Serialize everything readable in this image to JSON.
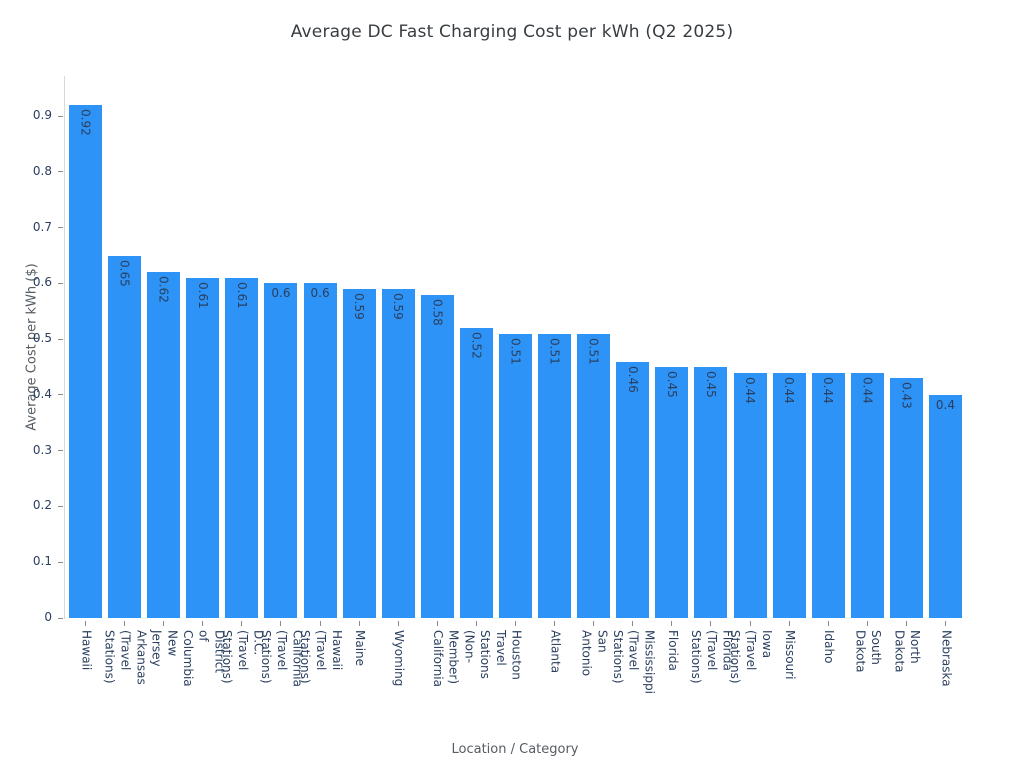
{
  "chart_data": {
    "type": "bar",
    "title": "Average DC Fast Charging Cost per kWh (Q2 2025)",
    "xlabel": "Location / Category",
    "ylabel": "Average Cost per kWh ($)",
    "categories": [
      "Hawaii",
      "Arkansas\n(Travel Stations)",
      "New Jersey",
      "District of\nColumbia",
      "D.C.\n(Travel Stations)",
      "California\n(Travel Stations)",
      "Hawaii\n(Travel Stations)",
      "Maine",
      "Wyoming",
      "California",
      "Travel Stations\n(Non-Member)",
      "Houston",
      "Atlanta",
      "San Antonio",
      "Mississippi\n(Travel Stations)",
      "Florida",
      "Florida\n(Travel Stations)",
      "Iowa\n(Travel Stations)",
      "Missouri",
      "Idaho",
      "South Dakota",
      "North Dakota",
      "Nebraska"
    ],
    "values": [
      0.92,
      0.65,
      0.62,
      0.61,
      0.61,
      0.6,
      0.6,
      0.59,
      0.59,
      0.58,
      0.52,
      0.51,
      0.51,
      0.51,
      0.46,
      0.45,
      0.45,
      0.44,
      0.44,
      0.44,
      0.44,
      0.43,
      0.4
    ],
    "yticks": [
      0,
      0.1,
      0.2,
      0.3,
      0.4,
      0.5,
      0.6,
      0.7,
      0.8,
      0.9
    ],
    "ylim": [
      0,
      0.972
    ],
    "grid": false,
    "legend": "none",
    "bar_color": "#2E93F7",
    "value_label_color": "#2a3f5f",
    "tick_label_color": "#2a3f5f",
    "axis_line_color": "#d9d9d9"
  }
}
